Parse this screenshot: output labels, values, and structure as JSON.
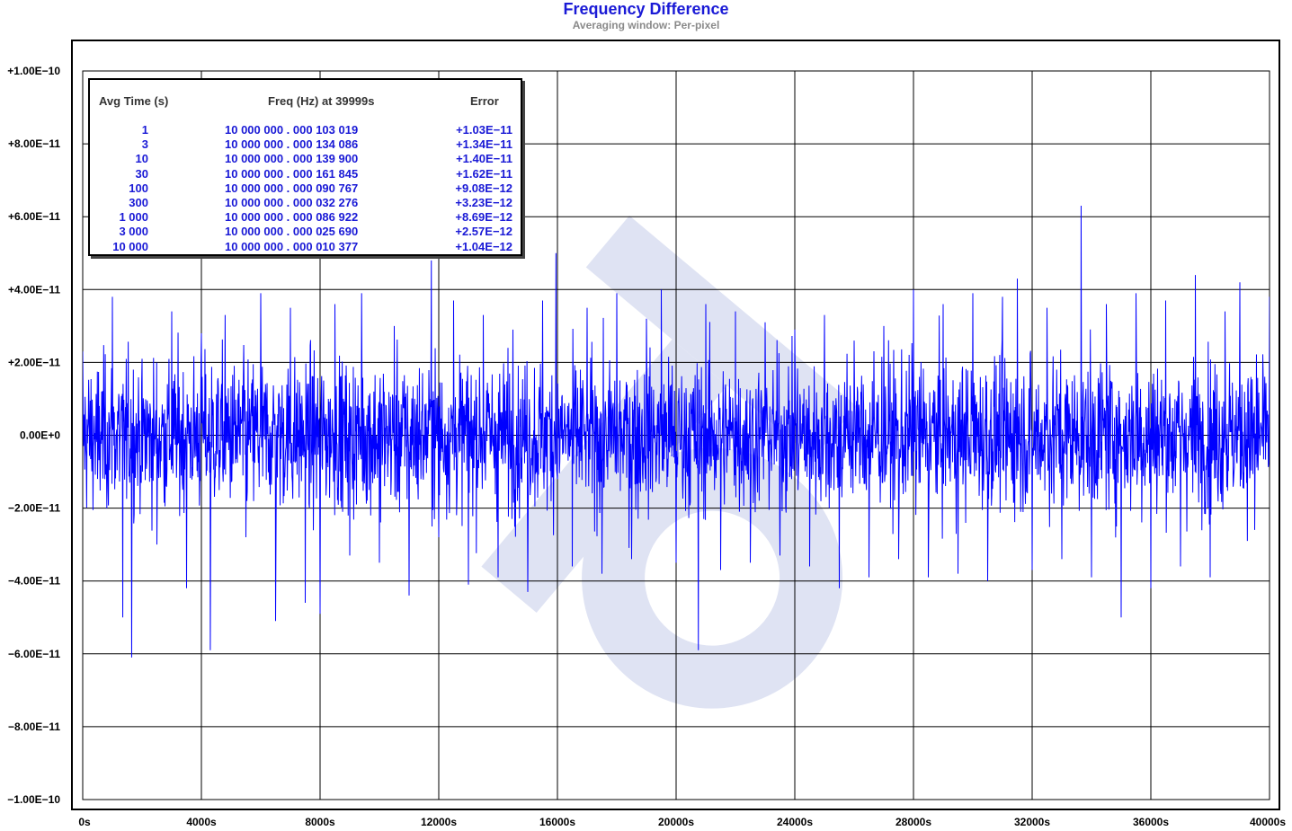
{
  "chart_data": {
    "type": "line",
    "title": "Frequency Difference",
    "subtitle": "Averaging window: Per-pixel",
    "xlabel": "",
    "ylabel": "",
    "xlim": [
      0,
      40000
    ],
    "ylim": [
      -1e-10,
      1e-10
    ],
    "grid": true,
    "x_tick_values": [
      0,
      4000,
      8000,
      12000,
      16000,
      20000,
      24000,
      28000,
      32000,
      36000,
      40000
    ],
    "x_tick_labels": [
      "0s",
      "4000s",
      "8000s",
      "12000s",
      "16000s",
      "20000s",
      "24000s",
      "28000s",
      "32000s",
      "36000s",
      "40000s"
    ],
    "y_tick_values": [
      1e-10,
      8e-11,
      6e-11,
      4e-11,
      2e-11,
      0,
      -2e-11,
      -4e-11,
      -6e-11,
      -8e-11,
      -1e-10
    ],
    "y_tick_labels": [
      "+1.00E−10",
      "+8.00E−11",
      "+6.00E−11",
      "+4.00E−11",
      "+2.00E−11",
      "0.00E+0",
      "−2.00E−11",
      "−4.00E−11",
      "−6.00E−11",
      "−8.00E−11",
      "−1.00E−10"
    ],
    "series": [
      {
        "name": "",
        "color": "#0000ff",
        "description": "noisy frequency difference, roughly zero mean",
        "stddev": 1.7e-11,
        "points": [
          [
            0,
            2.3e-11
          ],
          [
            500,
            -1.2e-11
          ],
          [
            1000,
            3.8e-11
          ],
          [
            1350,
            -5e-11
          ],
          [
            1650,
            -6.1e-11
          ],
          [
            2000,
            2.1e-11
          ],
          [
            2500,
            -3e-11
          ],
          [
            3000,
            3.4e-11
          ],
          [
            3500,
            -4.2e-11
          ],
          [
            4000,
            2.8e-11
          ],
          [
            4300,
            -5.9e-11
          ],
          [
            4800,
            3.3e-11
          ],
          [
            5500,
            -2.8e-11
          ],
          [
            6000,
            3.9e-11
          ],
          [
            6500,
            -5.1e-11
          ],
          [
            7000,
            3.5e-11
          ],
          [
            7500,
            -4.6e-11
          ],
          [
            8000,
            -4.9e-11
          ],
          [
            8500,
            3.6e-11
          ],
          [
            9000,
            -3.3e-11
          ],
          [
            9400,
            3.9e-11
          ],
          [
            10000,
            -3.5e-11
          ],
          [
            10500,
            3e-11
          ],
          [
            11000,
            -4.4e-11
          ],
          [
            11750,
            4.8e-11
          ],
          [
            12000,
            -2.8e-11
          ],
          [
            12500,
            3.7e-11
          ],
          [
            13000,
            -4.1e-11
          ],
          [
            13500,
            3.3e-11
          ],
          [
            14000,
            -3.9e-11
          ],
          [
            14500,
            2.9e-11
          ],
          [
            15000,
            -4.3e-11
          ],
          [
            15500,
            3.7e-11
          ],
          [
            15950,
            5e-11
          ],
          [
            16500,
            -3.6e-11
          ],
          [
            17000,
            3.5e-11
          ],
          [
            17500,
            -3.8e-11
          ],
          [
            18000,
            3.9e-11
          ],
          [
            18500,
            -3.4e-11
          ],
          [
            19000,
            3.2e-11
          ],
          [
            19500,
            4e-11
          ],
          [
            20000,
            -3.5e-11
          ],
          [
            20750,
            -5.9e-11
          ],
          [
            21000,
            3.6e-11
          ],
          [
            21500,
            -3.7e-11
          ],
          [
            22000,
            3.4e-11
          ],
          [
            22500,
            -3.5e-11
          ],
          [
            23000,
            3.1e-11
          ],
          [
            23500,
            -3.3e-11
          ],
          [
            24000,
            2.9e-11
          ],
          [
            24500,
            -3.6e-11
          ],
          [
            25000,
            3.3e-11
          ],
          [
            25500,
            -4.2e-11
          ],
          [
            26000,
            2.6e-11
          ],
          [
            26500,
            -3.9e-11
          ],
          [
            27000,
            3e-11
          ],
          [
            27500,
            -3.4e-11
          ],
          [
            28000,
            4e-11
          ],
          [
            28500,
            -3.9e-11
          ],
          [
            29000,
            3.6e-11
          ],
          [
            29500,
            -3.8e-11
          ],
          [
            30000,
            3.9e-11
          ],
          [
            30500,
            -4e-11
          ],
          [
            31000,
            3.8e-11
          ],
          [
            31500,
            4.3e-11
          ],
          [
            32000,
            -3.7e-11
          ],
          [
            32500,
            3.5e-11
          ],
          [
            33000,
            -3.4e-11
          ],
          [
            33650,
            6.3e-11
          ],
          [
            34000,
            -3.9e-11
          ],
          [
            34500,
            3.6e-11
          ],
          [
            35000,
            -5e-11
          ],
          [
            35500,
            3.9e-11
          ],
          [
            36000,
            -4.2e-11
          ],
          [
            36500,
            3.7e-11
          ],
          [
            37000,
            -3.6e-11
          ],
          [
            37500,
            4.4e-11
          ],
          [
            38000,
            -3.9e-11
          ],
          [
            38500,
            3.4e-11
          ],
          [
            39000,
            4.2e-11
          ],
          [
            39500,
            -2.6e-11
          ],
          [
            40000,
            3.8e-11
          ]
        ]
      }
    ]
  },
  "table": {
    "headers": {
      "avg_time": "Avg Time (s)",
      "freq": "Freq (Hz) at 39999s",
      "error": "Error"
    },
    "rows": [
      {
        "avg_time": "1",
        "freq": "10  000  000 . 000  103  019",
        "error": "+1.03E−11"
      },
      {
        "avg_time": "3",
        "freq": "10  000  000 . 000  134  086",
        "error": "+1.34E−11"
      },
      {
        "avg_time": "10",
        "freq": "10  000  000 . 000  139  900",
        "error": "+1.40E−11"
      },
      {
        "avg_time": "30",
        "freq": "10  000  000 . 000  161  845",
        "error": "+1.62E−11"
      },
      {
        "avg_time": "100",
        "freq": "10  000  000 . 000  090  767",
        "error": "+9.08E−12"
      },
      {
        "avg_time": "300",
        "freq": "10  000  000 . 000  032  276",
        "error": "+3.23E−12"
      },
      {
        "avg_time": "1  000",
        "freq": "10  000  000 . 000  086  922",
        "error": "+8.69E−12"
      },
      {
        "avg_time": "3  000",
        "freq": "10  000  000 . 000  025  690",
        "error": "+2.57E−12"
      },
      {
        "avg_time": "10  000",
        "freq": "10  000  000 . 000  010  377",
        "error": "+1.04E−12"
      }
    ]
  },
  "colors": {
    "series": "#0000ff",
    "title": "#1a1ad6",
    "subtitle": "#8a8a8a",
    "zero_label": "#1a1ad6",
    "table_text": "#1a1ad6",
    "watermark": "#dfe3f3"
  }
}
